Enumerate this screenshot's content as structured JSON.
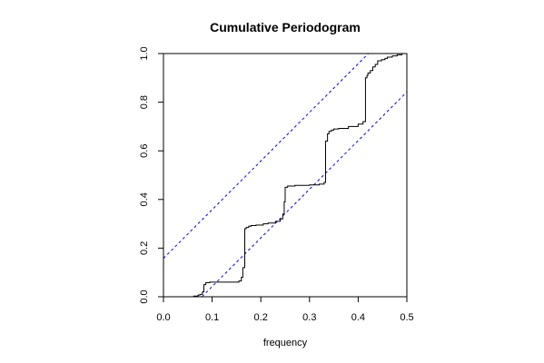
{
  "chart_data": {
    "type": "line",
    "title": "Cumulative Periodogram",
    "xlabel": "frequency",
    "ylabel": "",
    "xlim": [
      0.0,
      0.5
    ],
    "ylim": [
      0.0,
      1.0
    ],
    "grid": false,
    "xticks": [
      0.0,
      0.1,
      0.2,
      0.3,
      0.4,
      0.5
    ],
    "yticks": [
      0.0,
      0.2,
      0.4,
      0.6,
      0.8,
      1.0
    ],
    "xtick_labels": [
      "0.0",
      "0.1",
      "0.2",
      "0.3",
      "0.4",
      "0.5"
    ],
    "ytick_labels": [
      "0.0",
      "0.2",
      "0.4",
      "0.6",
      "0.8",
      "1.0"
    ],
    "series": [
      {
        "style": "step",
        "color": "#000000",
        "x": [
          0.0,
          0.062,
          0.071,
          0.075,
          0.08,
          0.083,
          0.087,
          0.095,
          0.155,
          0.16,
          0.163,
          0.167,
          0.17,
          0.175,
          0.18,
          0.19,
          0.205,
          0.215,
          0.23,
          0.24,
          0.245,
          0.248,
          0.25,
          0.255,
          0.27,
          0.3,
          0.32,
          0.33,
          0.333,
          0.337,
          0.34,
          0.345,
          0.35,
          0.36,
          0.38,
          0.4,
          0.41,
          0.415,
          0.418,
          0.42,
          0.425,
          0.43,
          0.435,
          0.44,
          0.448,
          0.455,
          0.46,
          0.47,
          0.48,
          0.49,
          0.5
        ],
        "y": [
          0.0,
          0.003,
          0.007,
          0.01,
          0.02,
          0.05,
          0.058,
          0.06,
          0.065,
          0.08,
          0.12,
          0.28,
          0.285,
          0.29,
          0.293,
          0.295,
          0.3,
          0.303,
          0.31,
          0.32,
          0.34,
          0.39,
          0.45,
          0.455,
          0.458,
          0.46,
          0.463,
          0.47,
          0.64,
          0.67,
          0.68,
          0.685,
          0.69,
          0.692,
          0.7,
          0.71,
          0.72,
          0.9,
          0.91,
          0.92,
          0.93,
          0.945,
          0.955,
          0.97,
          0.975,
          0.98,
          0.985,
          0.99,
          0.995,
          1.0,
          1.0
        ]
      },
      {
        "style": "dashed",
        "color": "#0000ff",
        "x": [
          0.0,
          0.5
        ],
        "y": [
          0.158,
          1.158
        ]
      },
      {
        "style": "dashed",
        "color": "#0000ff",
        "x": [
          0.0,
          0.5
        ],
        "y": [
          -0.158,
          0.842
        ]
      }
    ]
  }
}
